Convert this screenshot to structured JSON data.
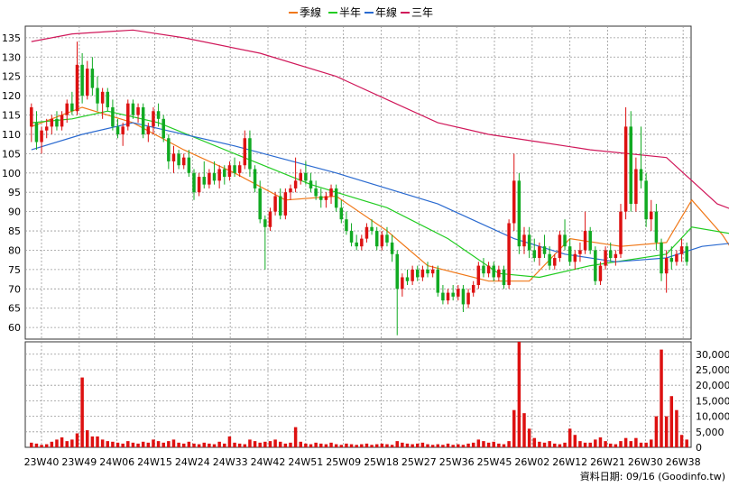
{
  "legend": [
    {
      "name": "季線",
      "color": "#f07818"
    },
    {
      "name": "半年",
      "color": "#22cc22"
    },
    {
      "name": "年線",
      "color": "#2a6ad0"
    },
    {
      "name": "三年",
      "color": "#d0185a"
    }
  ],
  "footer": {
    "date_label": "資料日期: 09/16",
    "source": "(Goodinfo.tw)"
  },
  "chart_data": {
    "type": "candlestick",
    "title": "",
    "price_axis": {
      "ylim": [
        57,
        138
      ],
      "ticks": [
        60,
        65,
        70,
        75,
        80,
        85,
        90,
        95,
        100,
        105,
        110,
        115,
        120,
        125,
        130,
        135
      ]
    },
    "volume_axis": {
      "ylim": [
        0,
        34000
      ],
      "ticks": [
        0,
        5000,
        10000,
        15000,
        20000,
        25000,
        30000
      ],
      "tick_labels": [
        "0",
        "5,000",
        "10,000",
        "15,000",
        "20,000",
        "25,000",
        "30,000"
      ]
    },
    "x_labels": [
      "23W40",
      "23W49",
      "24W06",
      "24W15",
      "24W24",
      "24W33",
      "24W42",
      "24W51",
      "25W09",
      "25W18",
      "25W27",
      "25W36",
      "25W45",
      "26W02",
      "26W12",
      "26W21",
      "26W30",
      "26W38"
    ],
    "grid": true,
    "colors": {
      "up": "#dd1111",
      "down": "#11aa22",
      "volume": "#dd1111"
    },
    "candles": [
      {
        "o": 112,
        "h": 118,
        "l": 108,
        "c": 117
      },
      {
        "o": 113,
        "h": 116,
        "l": 106,
        "c": 108
      },
      {
        "o": 108,
        "h": 112,
        "l": 105,
        "c": 111
      },
      {
        "o": 111,
        "h": 114,
        "l": 109,
        "c": 112
      },
      {
        "o": 112,
        "h": 115,
        "l": 110,
        "c": 114
      },
      {
        "o": 114,
        "h": 116,
        "l": 111,
        "c": 112
      },
      {
        "o": 112,
        "h": 116,
        "l": 111,
        "c": 115
      },
      {
        "o": 115,
        "h": 119,
        "l": 113,
        "c": 118
      },
      {
        "o": 118,
        "h": 121,
        "l": 115,
        "c": 116
      },
      {
        "o": 116,
        "h": 134,
        "l": 115,
        "c": 128
      },
      {
        "o": 128,
        "h": 131,
        "l": 118,
        "c": 120
      },
      {
        "o": 120,
        "h": 129,
        "l": 119,
        "c": 127
      },
      {
        "o": 127,
        "h": 130,
        "l": 120,
        "c": 122
      },
      {
        "o": 122,
        "h": 125,
        "l": 116,
        "c": 118
      },
      {
        "o": 118,
        "h": 122,
        "l": 114,
        "c": 121
      },
      {
        "o": 121,
        "h": 122,
        "l": 116,
        "c": 117
      },
      {
        "o": 117,
        "h": 119,
        "l": 111,
        "c": 112
      },
      {
        "o": 112,
        "h": 114,
        "l": 109,
        "c": 110
      },
      {
        "o": 110,
        "h": 113,
        "l": 107,
        "c": 112
      },
      {
        "o": 112,
        "h": 119,
        "l": 111,
        "c": 118
      },
      {
        "o": 118,
        "h": 119,
        "l": 114,
        "c": 115
      },
      {
        "o": 115,
        "h": 118,
        "l": 113,
        "c": 117
      },
      {
        "o": 117,
        "h": 118,
        "l": 109,
        "c": 110
      },
      {
        "o": 110,
        "h": 113,
        "l": 108,
        "c": 112
      },
      {
        "o": 112,
        "h": 117,
        "l": 110,
        "c": 116
      },
      {
        "o": 116,
        "h": 118,
        "l": 112,
        "c": 114
      },
      {
        "o": 114,
        "h": 115,
        "l": 108,
        "c": 109
      },
      {
        "o": 109,
        "h": 110,
        "l": 101,
        "c": 103
      },
      {
        "o": 103,
        "h": 107,
        "l": 100,
        "c": 105
      },
      {
        "o": 105,
        "h": 106,
        "l": 101,
        "c": 102
      },
      {
        "o": 102,
        "h": 105,
        "l": 101,
        "c": 104
      },
      {
        "o": 104,
        "h": 106,
        "l": 99,
        "c": 100
      },
      {
        "o": 100,
        "h": 101,
        "l": 93,
        "c": 95
      },
      {
        "o": 95,
        "h": 100,
        "l": 94,
        "c": 99
      },
      {
        "o": 99,
        "h": 103,
        "l": 96,
        "c": 97
      },
      {
        "o": 97,
        "h": 101,
        "l": 96,
        "c": 100
      },
      {
        "o": 100,
        "h": 103,
        "l": 97,
        "c": 98
      },
      {
        "o": 98,
        "h": 102,
        "l": 96,
        "c": 101
      },
      {
        "o": 101,
        "h": 102,
        "l": 97,
        "c": 99
      },
      {
        "o": 99,
        "h": 103,
        "l": 98,
        "c": 102
      },
      {
        "o": 102,
        "h": 104,
        "l": 99,
        "c": 100
      },
      {
        "o": 100,
        "h": 103,
        "l": 99,
        "c": 102
      },
      {
        "o": 102,
        "h": 111,
        "l": 101,
        "c": 109
      },
      {
        "o": 109,
        "h": 111,
        "l": 99,
        "c": 101
      },
      {
        "o": 101,
        "h": 102,
        "l": 95,
        "c": 96
      },
      {
        "o": 96,
        "h": 98,
        "l": 87,
        "c": 88
      },
      {
        "o": 88,
        "h": 89,
        "l": 75,
        "c": 86
      },
      {
        "o": 86,
        "h": 91,
        "l": 85,
        "c": 90
      },
      {
        "o": 90,
        "h": 95,
        "l": 89,
        "c": 94
      },
      {
        "o": 94,
        "h": 96,
        "l": 88,
        "c": 89
      },
      {
        "o": 89,
        "h": 96,
        "l": 88,
        "c": 95
      },
      {
        "o": 95,
        "h": 97,
        "l": 93,
        "c": 96
      },
      {
        "o": 96,
        "h": 104,
        "l": 95,
        "c": 98
      },
      {
        "o": 98,
        "h": 101,
        "l": 97,
        "c": 100
      },
      {
        "o": 100,
        "h": 103,
        "l": 97,
        "c": 98
      },
      {
        "o": 98,
        "h": 100,
        "l": 95,
        "c": 96
      },
      {
        "o": 96,
        "h": 98,
        "l": 93,
        "c": 94
      },
      {
        "o": 94,
        "h": 96,
        "l": 91,
        "c": 93
      },
      {
        "o": 93,
        "h": 95,
        "l": 91,
        "c": 94
      },
      {
        "o": 94,
        "h": 97,
        "l": 92,
        "c": 96
      },
      {
        "o": 96,
        "h": 97,
        "l": 90,
        "c": 91
      },
      {
        "o": 91,
        "h": 93,
        "l": 87,
        "c": 88
      },
      {
        "o": 88,
        "h": 90,
        "l": 84,
        "c": 85
      },
      {
        "o": 85,
        "h": 87,
        "l": 81,
        "c": 82
      },
      {
        "o": 82,
        "h": 84,
        "l": 80,
        "c": 81
      },
      {
        "o": 81,
        "h": 84,
        "l": 80,
        "c": 83
      },
      {
        "o": 83,
        "h": 87,
        "l": 82,
        "c": 86
      },
      {
        "o": 86,
        "h": 88,
        "l": 84,
        "c": 85
      },
      {
        "o": 85,
        "h": 86,
        "l": 80,
        "c": 81
      },
      {
        "o": 81,
        "h": 85,
        "l": 80,
        "c": 84
      },
      {
        "o": 84,
        "h": 86,
        "l": 81,
        "c": 82
      },
      {
        "o": 82,
        "h": 84,
        "l": 77,
        "c": 79
      },
      {
        "o": 79,
        "h": 80,
        "l": 58,
        "c": 70
      },
      {
        "o": 70,
        "h": 74,
        "l": 68,
        "c": 73
      },
      {
        "o": 73,
        "h": 75,
        "l": 71,
        "c": 72
      },
      {
        "o": 72,
        "h": 76,
        "l": 71,
        "c": 75
      },
      {
        "o": 75,
        "h": 76,
        "l": 72,
        "c": 73
      },
      {
        "o": 73,
        "h": 76,
        "l": 72,
        "c": 75
      },
      {
        "o": 75,
        "h": 77,
        "l": 73,
        "c": 74
      },
      {
        "o": 74,
        "h": 76,
        "l": 73,
        "c": 75
      },
      {
        "o": 75,
        "h": 76,
        "l": 68,
        "c": 69
      },
      {
        "o": 69,
        "h": 71,
        "l": 66,
        "c": 67
      },
      {
        "o": 67,
        "h": 70,
        "l": 66,
        "c": 69
      },
      {
        "o": 69,
        "h": 71,
        "l": 67,
        "c": 68
      },
      {
        "o": 68,
        "h": 71,
        "l": 67,
        "c": 70
      },
      {
        "o": 70,
        "h": 71,
        "l": 64,
        "c": 66
      },
      {
        "o": 66,
        "h": 70,
        "l": 65,
        "c": 69
      },
      {
        "o": 69,
        "h": 72,
        "l": 68,
        "c": 71
      },
      {
        "o": 71,
        "h": 77,
        "l": 70,
        "c": 76
      },
      {
        "o": 76,
        "h": 78,
        "l": 73,
        "c": 74
      },
      {
        "o": 74,
        "h": 77,
        "l": 73,
        "c": 76
      },
      {
        "o": 76,
        "h": 77,
        "l": 72,
        "c": 73
      },
      {
        "o": 73,
        "h": 76,
        "l": 72,
        "c": 75
      },
      {
        "o": 75,
        "h": 76,
        "l": 70,
        "c": 71
      },
      {
        "o": 71,
        "h": 88,
        "l": 70,
        "c": 87
      },
      {
        "o": 87,
        "h": 105,
        "l": 85,
        "c": 98
      },
      {
        "o": 98,
        "h": 100,
        "l": 79,
        "c": 81
      },
      {
        "o": 81,
        "h": 86,
        "l": 79,
        "c": 84
      },
      {
        "o": 84,
        "h": 86,
        "l": 78,
        "c": 80
      },
      {
        "o": 80,
        "h": 83,
        "l": 77,
        "c": 78
      },
      {
        "o": 78,
        "h": 82,
        "l": 76,
        "c": 81
      },
      {
        "o": 81,
        "h": 84,
        "l": 78,
        "c": 79
      },
      {
        "o": 79,
        "h": 81,
        "l": 75,
        "c": 76
      },
      {
        "o": 76,
        "h": 79,
        "l": 75,
        "c": 78
      },
      {
        "o": 78,
        "h": 85,
        "l": 77,
        "c": 84
      },
      {
        "o": 84,
        "h": 88,
        "l": 80,
        "c": 81
      },
      {
        "o": 81,
        "h": 83,
        "l": 76,
        "c": 77
      },
      {
        "o": 77,
        "h": 80,
        "l": 75,
        "c": 79
      },
      {
        "o": 79,
        "h": 82,
        "l": 77,
        "c": 80
      },
      {
        "o": 80,
        "h": 90,
        "l": 79,
        "c": 85
      },
      {
        "o": 85,
        "h": 86,
        "l": 79,
        "c": 80
      },
      {
        "o": 80,
        "h": 81,
        "l": 71,
        "c": 72
      },
      {
        "o": 72,
        "h": 77,
        "l": 71,
        "c": 76
      },
      {
        "o": 76,
        "h": 81,
        "l": 75,
        "c": 80
      },
      {
        "o": 80,
        "h": 82,
        "l": 77,
        "c": 78
      },
      {
        "o": 78,
        "h": 80,
        "l": 76,
        "c": 79
      },
      {
        "o": 79,
        "h": 92,
        "l": 78,
        "c": 90
      },
      {
        "o": 90,
        "h": 117,
        "l": 88,
        "c": 112
      },
      {
        "o": 112,
        "h": 116,
        "l": 90,
        "c": 92
      },
      {
        "o": 92,
        "h": 104,
        "l": 90,
        "c": 101
      },
      {
        "o": 101,
        "h": 112,
        "l": 96,
        "c": 98
      },
      {
        "o": 98,
        "h": 100,
        "l": 86,
        "c": 88
      },
      {
        "o": 88,
        "h": 93,
        "l": 85,
        "c": 90
      },
      {
        "o": 90,
        "h": 92,
        "l": 80,
        "c": 82
      },
      {
        "o": 82,
        "h": 83,
        "l": 72,
        "c": 74
      },
      {
        "o": 74,
        "h": 80,
        "l": 69,
        "c": 78
      },
      {
        "o": 78,
        "h": 81,
        "l": 75,
        "c": 77
      },
      {
        "o": 77,
        "h": 80,
        "l": 76,
        "c": 79
      },
      {
        "o": 79,
        "h": 83,
        "l": 77,
        "c": 81
      },
      {
        "o": 81,
        "h": 82,
        "l": 76,
        "c": 77
      }
    ],
    "volume": [
      1500,
      1200,
      800,
      1000,
      1800,
      2500,
      3200,
      2000,
      2500,
      4500,
      22500,
      5500,
      3500,
      3500,
      2500,
      2000,
      1800,
      1500,
      1200,
      2000,
      1500,
      1200,
      1800,
      1500,
      2500,
      2000,
      1500,
      2000,
      2500,
      1500,
      1200,
      1800,
      1200,
      1000,
      1500,
      1200,
      1000,
      1800,
      1200,
      3500,
      1500,
      1200,
      1000,
      2500,
      2000,
      1500,
      1800,
      2000,
      2500,
      1800,
      1200,
      1500,
      6500,
      1800,
      1200,
      1000,
      1500,
      1200,
      1000,
      1500,
      1000,
      800,
      1200,
      1000,
      800,
      1000,
      1200,
      800,
      1000,
      1200,
      1000,
      800,
      2000,
      1500,
      1200,
      1000,
      1200,
      1500,
      1000,
      800,
      1000,
      800,
      1200,
      800,
      1000,
      800,
      1200,
      1500,
      2500,
      2000,
      1500,
      1800,
      1200,
      1000,
      2000,
      12000,
      34000,
      11000,
      6000,
      3000,
      1800,
      1500,
      2000,
      1200,
      1000,
      1500,
      6000,
      4000,
      2000,
      1500,
      1500,
      2500,
      3200,
      2000,
      1200,
      1000,
      2000,
      3000,
      2000,
      3000,
      1500,
      1500,
      2500,
      10000,
      31500,
      10000,
      16500,
      12000,
      4000,
      2500,
      2000,
      2500,
      2000,
      1500,
      1200,
      1000
    ],
    "ma_lines": {
      "季線": [
        [
          0,
          112
        ],
        [
          10,
          117
        ],
        [
          20,
          113
        ],
        [
          30,
          106
        ],
        [
          40,
          100
        ],
        [
          50,
          93
        ],
        [
          60,
          94
        ],
        [
          70,
          85
        ],
        [
          78,
          76
        ],
        [
          90,
          72
        ],
        [
          98,
          72
        ],
        [
          106,
          83
        ],
        [
          116,
          81
        ],
        [
          125,
          82
        ],
        [
          130,
          93
        ],
        [
          136,
          84
        ],
        [
          139,
          78
        ]
      ],
      "半年": [
        [
          0,
          113
        ],
        [
          8,
          114
        ],
        [
          15,
          116
        ],
        [
          25,
          113
        ],
        [
          40,
          105
        ],
        [
          55,
          97
        ],
        [
          70,
          91
        ],
        [
          82,
          83
        ],
        [
          92,
          74
        ],
        [
          100,
          73
        ],
        [
          110,
          76
        ],
        [
          125,
          79
        ],
        [
          130,
          86
        ],
        [
          139,
          84
        ]
      ],
      "年線": [
        [
          0,
          106
        ],
        [
          10,
          110
        ],
        [
          20,
          113
        ],
        [
          40,
          107
        ],
        [
          60,
          100
        ],
        [
          80,
          92
        ],
        [
          95,
          83
        ],
        [
          105,
          79
        ],
        [
          115,
          77
        ],
        [
          125,
          78
        ],
        [
          132,
          81
        ],
        [
          139,
          82
        ]
      ],
      "三年": [
        [
          0,
          134
        ],
        [
          8,
          136
        ],
        [
          20,
          137
        ],
        [
          30,
          135
        ],
        [
          45,
          131
        ],
        [
          60,
          125
        ],
        [
          70,
          119
        ],
        [
          80,
          113
        ],
        [
          90,
          110
        ],
        [
          100,
          108
        ],
        [
          110,
          106
        ],
        [
          125,
          104
        ],
        [
          135,
          92
        ],
        [
          139,
          90
        ]
      ]
    }
  }
}
